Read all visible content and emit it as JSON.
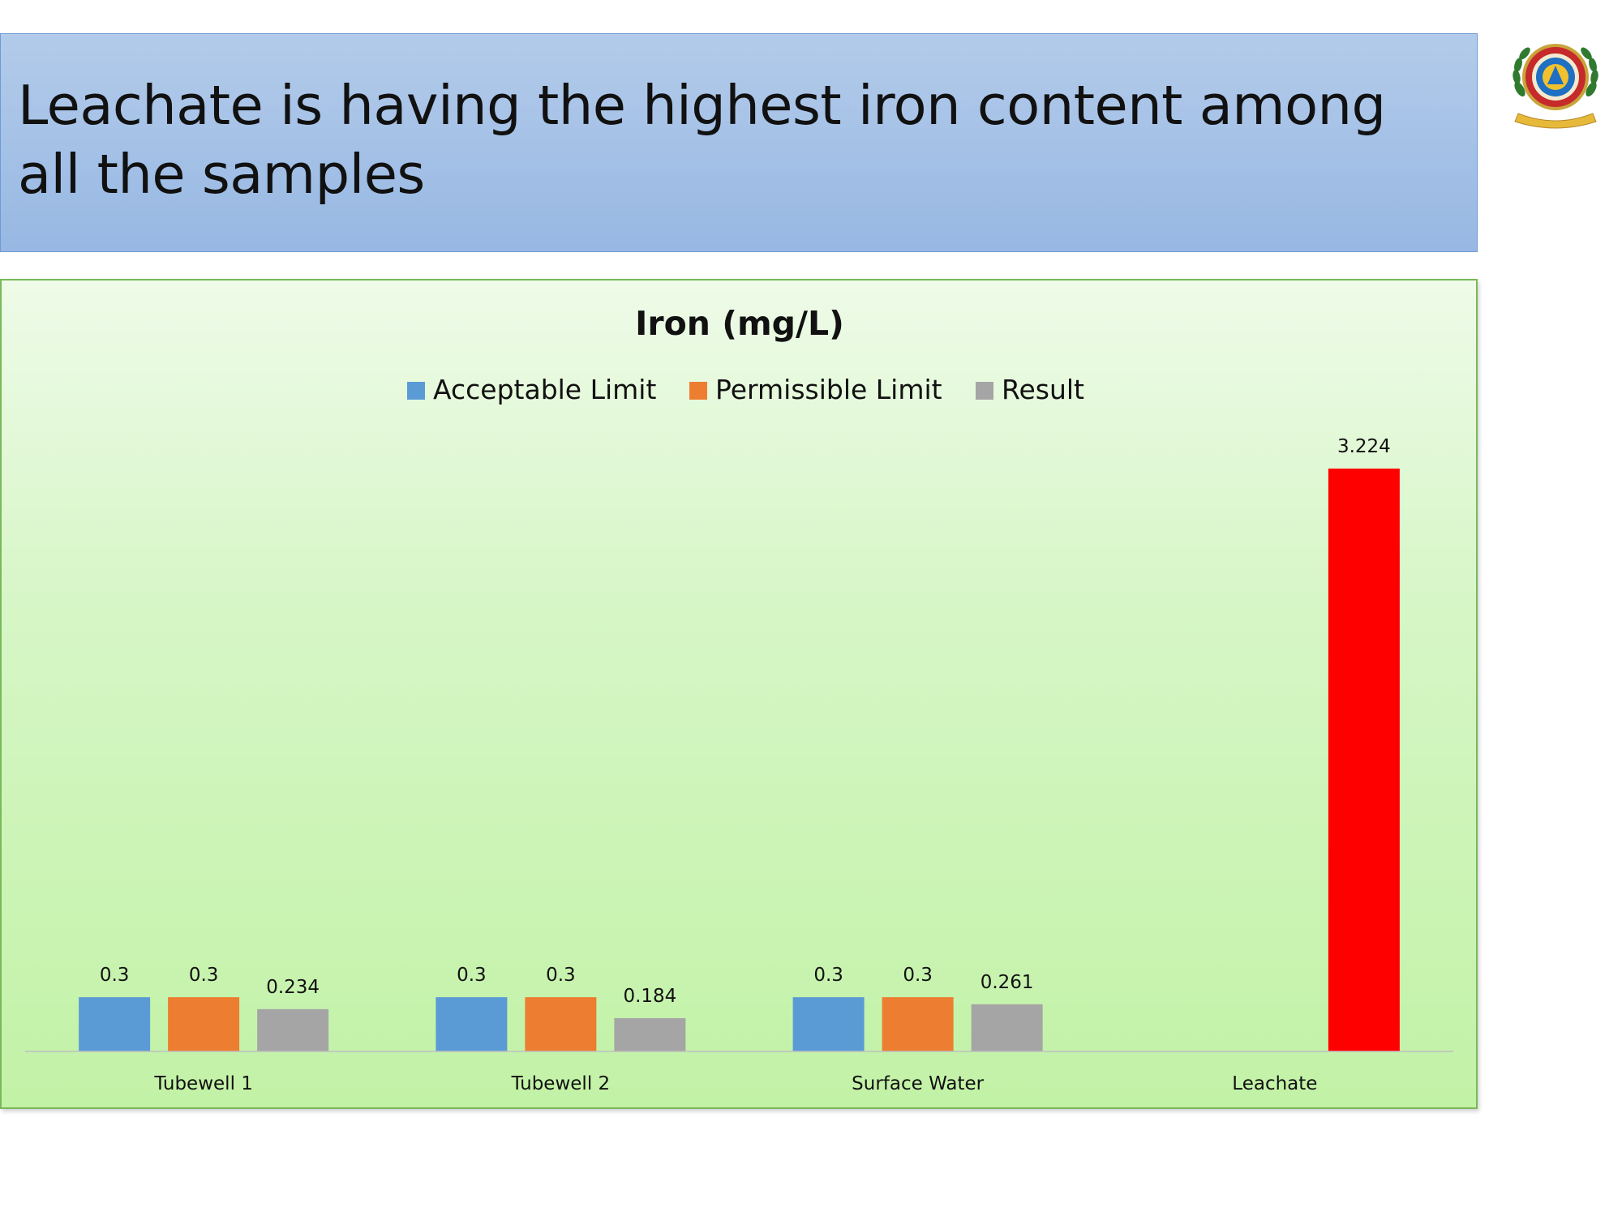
{
  "slide": {
    "title": "Leachate is having the highest iron content among all the samples"
  },
  "colors": {
    "acceptable": "#5b9bd5",
    "permissible": "#ed7d31",
    "result": "#a5a5a5",
    "highlight": "#ff0000",
    "banner": "#9bbbe5",
    "panel_border": "#79b95a",
    "axis": "#bfbfbf"
  },
  "logo": {
    "icon": "college-emblem-seal-icon"
  },
  "chart_data": {
    "type": "bar",
    "title": "Iron (mg/L)",
    "xlabel": "",
    "ylabel": "",
    "categories": [
      "Tubewell 1",
      "Tubewell 2",
      "Surface Water",
      "Leachate"
    ],
    "series": [
      {
        "name": "Acceptable Limit",
        "values": [
          0.3,
          0.3,
          0.3,
          null
        ]
      },
      {
        "name": "Permissible Limit",
        "values": [
          0.3,
          0.3,
          0.3,
          null
        ]
      },
      {
        "name": "Result",
        "values": [
          0.234,
          0.184,
          0.261,
          3.224
        ]
      }
    ],
    "data_labels": [
      [
        "0.3",
        "0.3",
        "0.3",
        ""
      ],
      [
        "0.3",
        "0.3",
        "0.3",
        ""
      ],
      [
        "0.234",
        "0.184",
        "0.261",
        "3.224"
      ]
    ],
    "highlighted_point": {
      "series": "Result",
      "category": "Leachate",
      "color": "#ff0000"
    },
    "ylim": [
      0,
      4.4
    ],
    "grid": false,
    "y_axis_visible": false,
    "legend_position": "top"
  }
}
